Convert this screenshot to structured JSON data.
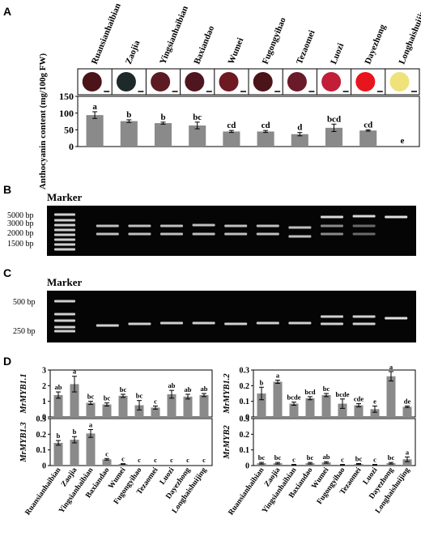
{
  "panels": {
    "a": "A",
    "b": "B",
    "c": "C",
    "d": "D"
  },
  "varieties": [
    "Ruansianhaibian",
    "Zaojia",
    "Yingsianhaibian",
    "Baxiandao",
    "Wumei",
    "Fugongyihao",
    "Tezaomei",
    "Luozi",
    "Dayezhong",
    "Longhaishuijing"
  ],
  "fruit_colors": [
    "#4a1418",
    "#1e2a2a",
    "#5c1a22",
    "#4f1620",
    "#6e1822",
    "#4a1418",
    "#6a1a28",
    "#c21e38",
    "#e8141e",
    "#efe27a"
  ],
  "gel_b": {
    "marker_label": "Marker",
    "ladder": [
      "5000 bp",
      "3000 bp",
      "2000 bp",
      "1500 bp"
    ]
  },
  "gel_c": {
    "marker_label": "Marker",
    "ladder": [
      "500 bp",
      "250 bp"
    ]
  },
  "chart_data": [
    {
      "type": "bar",
      "panel": "A",
      "ylabel": "Anthocyanin content (mg/100g FW)",
      "ylim": [
        0,
        150
      ],
      "yticks": [
        0,
        50,
        100,
        150
      ],
      "categories": [
        "Ruansianhaibian",
        "Zaojia",
        "Yingsianhaibian",
        "Baxiandao",
        "Wumei",
        "Fugongyihao",
        "Tezaomei",
        "Luozi",
        "Dayezhong",
        "Longhaishuijing"
      ],
      "values": [
        94,
        76,
        70,
        63,
        45,
        45,
        37,
        56,
        48,
        0
      ],
      "errors": [
        10,
        4,
        3,
        10,
        3,
        3,
        5,
        11,
        2,
        0
      ],
      "letters": [
        "a",
        "b",
        "b",
        "bc",
        "cd",
        "cd",
        "d",
        "bcd",
        "cd",
        "e"
      ]
    },
    {
      "type": "bar",
      "panel": "D",
      "ylabel": "MrMYB1.1",
      "ylim": [
        0,
        3
      ],
      "yticks": [
        0,
        1,
        2,
        3
      ],
      "categories": [
        "Ruansianhaibian",
        "Zaojia",
        "Yingsianhaibian",
        "Baxiandao",
        "Wumei",
        "Fugongyihao",
        "Tezaomei",
        "Luozi",
        "Dayezhong",
        "Longhaishuijing"
      ],
      "values": [
        1.4,
        2.1,
        0.9,
        0.8,
        1.35,
        0.75,
        0.6,
        1.45,
        1.3,
        1.4
      ],
      "errors": [
        0.2,
        0.5,
        0.1,
        0.1,
        0.1,
        0.3,
        0.1,
        0.25,
        0.15,
        0.1
      ],
      "letters": [
        "ab",
        "a",
        "bc",
        "bc",
        "bc",
        "bc",
        "c",
        "ab",
        "ab",
        "ab"
      ]
    },
    {
      "type": "bar",
      "panel": "D",
      "ylabel": "MrMYB1.2",
      "ylim": [
        0,
        0.3
      ],
      "yticks": [
        0,
        0.1,
        0.2,
        0.3
      ],
      "categories": [
        "Ruansianhaibian",
        "Zaojia",
        "Yingsianhaibian",
        "Baxiandao",
        "Wumei",
        "Fugongyihao",
        "Tezaomei",
        "Luozi",
        "Dayezhong",
        "Longhaishuijing"
      ],
      "values": [
        0.15,
        0.225,
        0.085,
        0.12,
        0.14,
        0.085,
        0.075,
        0.05,
        0.26,
        0.065
      ],
      "errors": [
        0.04,
        0.01,
        0.01,
        0.01,
        0.01,
        0.03,
        0.01,
        0.02,
        0.03,
        0.005
      ],
      "letters": [
        "b",
        "a",
        "bcde",
        "bcd",
        "bc",
        "bcde",
        "cde",
        "e",
        "a",
        "de"
      ]
    },
    {
      "type": "bar",
      "panel": "D",
      "ylabel": "MrMYB1.3",
      "ylim": [
        0,
        0.3
      ],
      "yticks": [
        0,
        0.1,
        0.2,
        0.3
      ],
      "categories": [
        "Ruansianhaibian",
        "Zaojia",
        "Yingsianhaibian",
        "Baxiandao",
        "Wumei",
        "Fugongyihao",
        "Tezaomei",
        "Luozi",
        "Dayezhong",
        "Longhaishuijing"
      ],
      "values": [
        0.145,
        0.165,
        0.205,
        0.04,
        0.01,
        0,
        0,
        0,
        0,
        0
      ],
      "errors": [
        0.015,
        0.02,
        0.025,
        0.005,
        0.002,
        0,
        0,
        0,
        0,
        0
      ],
      "letters": [
        "b",
        "b",
        "a",
        "c",
        "c",
        "c",
        "c",
        "c",
        "c",
        "c"
      ]
    },
    {
      "type": "bar",
      "panel": "D",
      "ylabel": "MrMYB2",
      "ylim": [
        0,
        0.3
      ],
      "yticks": [
        0,
        0.1,
        0.2,
        0.3
      ],
      "categories": [
        "Ruansianhaibian",
        "Zaojia",
        "Yingsianhaibian",
        "Baxiandao",
        "Wumei",
        "Fugongyihao",
        "Tezaomei",
        "Luozi",
        "Dayezhong",
        "Longhaishuijing"
      ],
      "values": [
        0.015,
        0.015,
        0.005,
        0.015,
        0.02,
        0.005,
        0.01,
        0.005,
        0.015,
        0.04
      ],
      "errors": [
        0.005,
        0.005,
        0.002,
        0.005,
        0.005,
        0.002,
        0.003,
        0.002,
        0.005,
        0.015
      ],
      "letters": [
        "bc",
        "bc",
        "c",
        "bc",
        "ab",
        "c",
        "bc",
        "c",
        "bc",
        "a"
      ]
    }
  ]
}
